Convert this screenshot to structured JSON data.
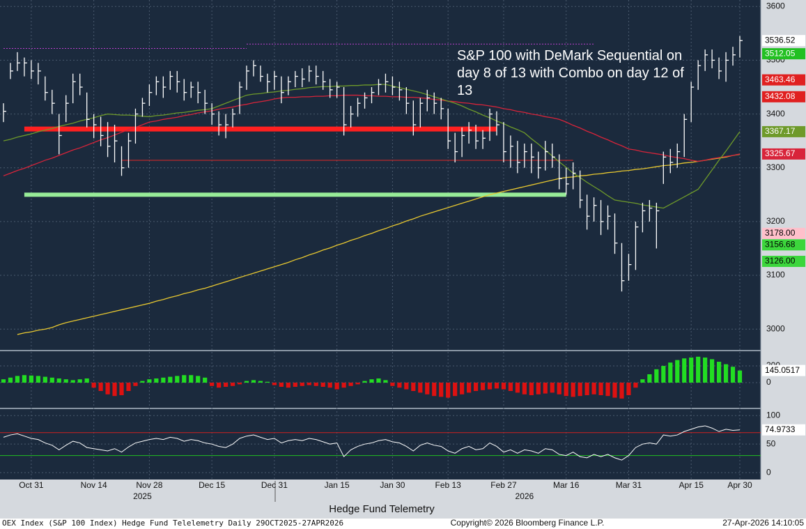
{
  "chart_data": [
    {
      "type": "hlc",
      "categories": [
        null,
        null,
        null,
        null,
        "Oct 31",
        null,
        null,
        null,
        null,
        null,
        null,
        null,
        null,
        "Nov 14",
        null,
        null,
        null,
        null,
        null,
        null,
        null,
        "Nov 28",
        null,
        null,
        null,
        null,
        null,
        null,
        null,
        null,
        "Dec 15",
        null,
        null,
        null,
        null,
        null,
        null,
        null,
        null,
        "Dec 31",
        null,
        null,
        null,
        null,
        null,
        null,
        null,
        null,
        "Jan 15",
        null,
        null,
        null,
        null,
        null,
        null,
        null,
        "Jan 30",
        null,
        null,
        null,
        null,
        null,
        null,
        null,
        "Feb 13",
        null,
        null,
        null,
        null,
        null,
        null,
        null,
        "Feb 27",
        null,
        null,
        null,
        null,
        null,
        null,
        null,
        null,
        "Mar 16",
        null,
        null,
        null,
        null,
        null,
        null,
        null,
        null,
        "Mar 31",
        null,
        null,
        null,
        null,
        null,
        null,
        null,
        null,
        "Apr 15",
        null,
        null,
        null,
        null,
        null,
        null,
        "Apr 30"
      ],
      "high": [
        3420,
        3495,
        3515,
        3505,
        3500,
        3495,
        3470,
        3445,
        3400,
        3435,
        3475,
        3475,
        3440,
        3400,
        3395,
        3385,
        3380,
        3340,
        3365,
        3410,
        3430,
        3455,
        3470,
        3470,
        3480,
        3480,
        3465,
        3460,
        3460,
        3445,
        3420,
        3405,
        3400,
        3410,
        3460,
        3490,
        3500,
        3490,
        3475,
        3480,
        3470,
        3470,
        3480,
        3485,
        3490,
        3490,
        3480,
        3465,
        3460,
        3450,
        3415,
        3430,
        3440,
        3450,
        3465,
        3475,
        3470,
        3460,
        3450,
        3425,
        3430,
        3445,
        3440,
        3430,
        3410,
        3365,
        3375,
        3385,
        3380,
        3370,
        3410,
        3405,
        3385,
        3360,
        3350,
        3345,
        3345,
        3330,
        3350,
        3345,
        3325,
        3300,
        3310,
        3295,
        3250,
        3245,
        3240,
        3230,
        3215,
        3160,
        3140,
        3200,
        3235,
        3240,
        3235,
        3330,
        3335,
        3345,
        3400,
        3460,
        3500,
        3520,
        3520,
        3505,
        3515,
        3525,
        3545
      ],
      "low": [
        3385,
        3465,
        3480,
        3470,
        3465,
        3455,
        3425,
        3400,
        3325,
        3385,
        3420,
        3435,
        3375,
        3355,
        3340,
        3320,
        3310,
        3285,
        3300,
        3345,
        3395,
        3415,
        3435,
        3430,
        3445,
        3440,
        3425,
        3430,
        3420,
        3400,
        3380,
        3360,
        3355,
        3375,
        3400,
        3445,
        3470,
        3460,
        3440,
        3445,
        3420,
        3435,
        3450,
        3450,
        3460,
        3455,
        3445,
        3430,
        3430,
        3360,
        3375,
        3395,
        3410,
        3420,
        3435,
        3440,
        3435,
        3425,
        3400,
        3360,
        3375,
        3405,
        3400,
        3390,
        3335,
        3310,
        3320,
        3345,
        3335,
        3335,
        3350,
        3360,
        3310,
        3300,
        3290,
        3300,
        3290,
        3280,
        3295,
        3300,
        3260,
        3250,
        3260,
        3225,
        3185,
        3200,
        3175,
        3185,
        3140,
        3070,
        3090,
        3110,
        3180,
        3200,
        3150,
        3270,
        3290,
        3300,
        3320,
        3385,
        3445,
        3480,
        3485,
        3465,
        3460,
        3490,
        3505
      ],
      "close": [
        3405,
        3480,
        3495,
        3495,
        3480,
        3480,
        3440,
        3420,
        3360,
        3420,
        3460,
        3450,
        3390,
        3380,
        3360,
        3340,
        3350,
        3300,
        3350,
        3400,
        3420,
        3440,
        3460,
        3450,
        3470,
        3460,
        3440,
        3450,
        3440,
        3420,
        3400,
        3380,
        3380,
        3400,
        3450,
        3480,
        3490,
        3470,
        3460,
        3470,
        3440,
        3460,
        3470,
        3465,
        3480,
        3470,
        3460,
        3445,
        3450,
        3380,
        3400,
        3420,
        3430,
        3440,
        3455,
        3460,
        3450,
        3445,
        3420,
        3380,
        3420,
        3430,
        3420,
        3410,
        3350,
        3330,
        3360,
        3370,
        3350,
        3355,
        3400,
        3380,
        3330,
        3340,
        3310,
        3330,
        3320,
        3300,
        3330,
        3320,
        3280,
        3270,
        3290,
        3240,
        3210,
        3230,
        3200,
        3210,
        3160,
        3090,
        3120,
        3190,
        3220,
        3225,
        3220,
        3320,
        3310,
        3330,
        3390,
        3450,
        3490,
        3510,
        3500,
        3480,
        3500,
        3510,
        3536.52
      ],
      "color": "#ffffff",
      "overlays": [
        {
          "color": "#e8c830",
          "values": [
            null,
            null,
            2990,
            2993,
            2995,
            2998,
            3000,
            3003,
            3008,
            3012,
            3015,
            3018,
            3021,
            3024,
            3027,
            3030,
            3033,
            3036,
            3039,
            3042,
            3045,
            3048,
            3052,
            3055,
            3059,
            3062,
            3066,
            3069,
            3073,
            3076,
            3080,
            3084,
            3088,
            3092,
            3096,
            3100,
            3104,
            3108,
            3112,
            3116,
            3120,
            3124,
            3129,
            3133,
            3138,
            3142,
            3147,
            3151,
            3156,
            3160,
            3165,
            3169,
            3174,
            3178,
            3183,
            3187,
            3192,
            3196,
            3201,
            3205,
            3210,
            3214,
            3218,
            3222,
            3226,
            3230,
            3234,
            3238,
            3242,
            3246,
            3250,
            3253,
            3256,
            3259,
            3262,
            3265,
            3268,
            3271,
            3274,
            3277,
            3280,
            3282,
            3283,
            3285,
            3286,
            3288,
            3289,
            3291,
            3292,
            3294,
            3295,
            3297,
            3298,
            3300,
            3302,
            3304,
            3305,
            3307,
            3309,
            3310,
            3312,
            3314,
            3316,
            3318,
            3320,
            3323,
            3325
          ]
        },
        {
          "color": "#d8243a",
          "values": [
            3285,
            3290,
            3295,
            3299,
            3304,
            3309,
            3314,
            3318,
            3323,
            3328,
            3333,
            3337,
            3342,
            3347,
            3352,
            3356,
            3361,
            3366,
            3371,
            3375,
            3380,
            3385,
            3387,
            3390,
            3392,
            3394,
            3397,
            3399,
            3402,
            3404,
            3406,
            3409,
            3411,
            3413,
            3416,
            3418,
            3421,
            3423,
            3425,
            3428,
            3430,
            3431,
            3431,
            3432,
            3432,
            3433,
            3433,
            3434,
            3434,
            3435,
            3435,
            3435,
            3434,
            3434,
            3433,
            3433,
            3432,
            3432,
            3431,
            3431,
            3430,
            3429,
            3427,
            3426,
            3424,
            3423,
            3421,
            3420,
            3418,
            3417,
            3415,
            3413,
            3410,
            3408,
            3405,
            3403,
            3400,
            3398,
            3395,
            3393,
            3390,
            3385,
            3379,
            3374,
            3368,
            3363,
            3357,
            3352,
            3346,
            3341,
            3335,
            3333,
            3330,
            3328,
            3326,
            3324,
            3321,
            3319,
            3317,
            3314,
            3312,
            3314,
            3317,
            3319,
            3321,
            3323,
            3325.67
          ]
        },
        {
          "color": "#6e9a2a",
          "values": [
            3350,
            3353,
            3357,
            3360,
            3363,
            3367,
            3370,
            3373,
            3377,
            3380,
            3383,
            3387,
            3390,
            3393,
            3397,
            3400,
            3399,
            3398,
            3398,
            3397,
            3396,
            3395,
            3397,
            3398,
            3400,
            3402,
            3403,
            3405,
            3407,
            3408,
            3410,
            3415,
            3420,
            3425,
            3430,
            3435,
            3437,
            3438,
            3440,
            3441,
            3443,
            3444,
            3446,
            3447,
            3449,
            3450,
            3451,
            3451,
            3452,
            3452,
            3453,
            3453,
            3454,
            3454,
            3455,
            3455,
            3452,
            3449,
            3446,
            3443,
            3440,
            3436,
            3432,
            3428,
            3424,
            3420,
            3415,
            3409,
            3404,
            3398,
            3393,
            3387,
            3382,
            3376,
            3371,
            3365,
            3354,
            3344,
            3333,
            3322,
            3311,
            3301,
            3290,
            3282,
            3273,
            3265,
            3257,
            3248,
            3240,
            3238,
            3236,
            3234,
            3231,
            3229,
            3227,
            3225,
            3232,
            3239,
            3246,
            3253,
            3260,
            3278,
            3296,
            3314,
            3331,
            3349,
            3367.17
          ]
        }
      ],
      "levels": [
        {
          "value": 3372,
          "color": "#ff2020",
          "width": 7,
          "span": [
            3,
            71
          ]
        },
        {
          "value": 3250,
          "color": "#98ec98",
          "width": 6,
          "span": [
            3,
            81
          ]
        },
        {
          "value": 3314,
          "color": "#e02828",
          "width": 1,
          "span": [
            17,
            82
          ]
        },
        {
          "value": 3522,
          "color": "#c040d0",
          "width": 1,
          "span": [
            0,
            35
          ],
          "dash": true
        },
        {
          "value": 3530,
          "color": "#c040d0",
          "width": 1,
          "span": [
            35,
            85
          ],
          "dash": true
        }
      ],
      "price_labels": [
        {
          "value": 3512.05,
          "bg": "#22c022",
          "fg": "#ffffff"
        },
        {
          "value": 3463.46,
          "bg": "#e02020",
          "fg": "#ffffff"
        },
        {
          "value": 3432.08,
          "bg": "#e02020",
          "fg": "#ffffff"
        },
        {
          "value": 3178,
          "label": "3178.00",
          "bg": "#ffc0cb",
          "fg": "#000000"
        },
        {
          "value": 3156.68,
          "bg": "#3cd63c",
          "fg": "#000000"
        },
        {
          "value": 3126,
          "label": "3126.00",
          "bg": "#3cd63c",
          "fg": "#000000"
        }
      ],
      "ylim": [
        2964,
        3612
      ],
      "yticks": [
        3000,
        3100,
        3200,
        3300,
        3400,
        3500,
        3600
      ],
      "grid": true,
      "annotation": "S&P 100 with DeMark Sequential on day 8 of 13 with Combo on day 12 of 13",
      "year_labels": [
        "2025",
        "2026"
      ],
      "x_title": "Hedge Fund Telemetry"
    },
    {
      "type": "bar",
      "values": [
        40,
        60,
        80,
        90,
        85,
        80,
        70,
        60,
        50,
        40,
        30,
        40,
        50,
        -60,
        -100,
        -140,
        -160,
        -150,
        -100,
        -40,
        20,
        40,
        50,
        60,
        70,
        80,
        90,
        90,
        80,
        60,
        -40,
        -60,
        -50,
        -40,
        -20,
        20,
        30,
        20,
        10,
        -30,
        -50,
        -60,
        -50,
        -40,
        -30,
        -40,
        -50,
        -60,
        -80,
        -60,
        -40,
        -20,
        20,
        40,
        50,
        30,
        -40,
        -60,
        -80,
        -100,
        -120,
        -140,
        -160,
        -170,
        -180,
        -160,
        -140,
        -120,
        -100,
        -90,
        -80,
        -70,
        -80,
        -100,
        -120,
        -140,
        -150,
        -140,
        -130,
        -120,
        -140,
        -160,
        -170,
        -160,
        -150,
        -140,
        -150,
        -160,
        -180,
        -190,
        -150,
        -60,
        40,
        100,
        160,
        200,
        240,
        270,
        290,
        300,
        310,
        300,
        280,
        250,
        220,
        190,
        145.0517
      ],
      "colors": {
        "up": "#22dd22",
        "down": "#dd1111"
      },
      "ylim": [
        -300,
        350
      ],
      "yticks": [
        0,
        200
      ],
      "grid": true
    },
    {
      "type": "line",
      "values": [
        62,
        66,
        68,
        64,
        60,
        58,
        52,
        48,
        40,
        48,
        55,
        52,
        44,
        42,
        40,
        38,
        42,
        36,
        45,
        52,
        55,
        58,
        60,
        58,
        62,
        60,
        55,
        58,
        56,
        52,
        50,
        46,
        44,
        50,
        60,
        64,
        66,
        62,
        58,
        60,
        52,
        56,
        58,
        56,
        60,
        58,
        54,
        50,
        52,
        28,
        40,
        46,
        50,
        52,
        56,
        58,
        54,
        52,
        46,
        38,
        48,
        52,
        48,
        46,
        38,
        34,
        42,
        46,
        40,
        42,
        52,
        46,
        36,
        40,
        34,
        40,
        38,
        34,
        42,
        40,
        32,
        30,
        36,
        28,
        26,
        32,
        28,
        32,
        26,
        22,
        30,
        44,
        50,
        52,
        50,
        66,
        64,
        66,
        72,
        76,
        80,
        82,
        78,
        72,
        76,
        74,
        74.9733
      ],
      "color": "#ffffff",
      "levels": [
        {
          "value": 70,
          "color": "#d02020"
        },
        {
          "value": 30,
          "color": "#20c020"
        }
      ],
      "ylim": [
        -12,
        110
      ],
      "yticks": [
        0,
        50,
        100
      ],
      "grid": true
    }
  ],
  "footer": {
    "left": "OEX Index (S&P 100 Index) Hedge Fund Telelemetry Daily 29OCT2025-27APR2026",
    "center": "Copyright© 2026 Bloomberg Finance L.P.",
    "right": "27-Apr-2026 14:10:05"
  }
}
